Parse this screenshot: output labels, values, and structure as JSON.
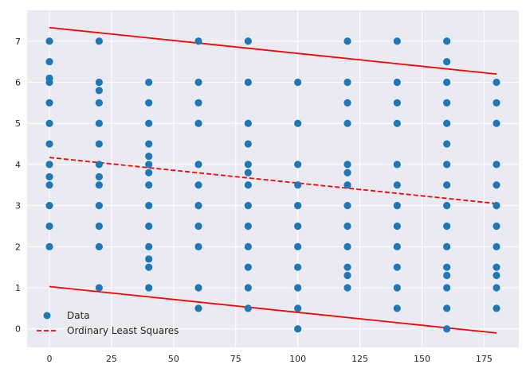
{
  "chart_data": {
    "type": "scatter",
    "title": "",
    "xlabel": "",
    "ylabel": "",
    "xlim": [
      -9,
      189
    ],
    "ylim": [
      -0.45,
      7.75
    ],
    "xticks": [
      0,
      25,
      50,
      75,
      100,
      125,
      150,
      175
    ],
    "yticks": [
      0,
      1,
      2,
      3,
      4,
      5,
      6,
      7
    ],
    "grid": true,
    "legend_position": "lower-left",
    "colors": {
      "background": "#eaeaf2",
      "grid": "#ffffff",
      "points": "#1f77b4",
      "fit": "#ff0000"
    },
    "series": [
      {
        "name": "Data",
        "kind": "scatter",
        "points": [
          [
            0,
            7
          ],
          [
            0,
            6.5
          ],
          [
            0,
            6.1
          ],
          [
            0,
            6
          ],
          [
            0,
            5.5
          ],
          [
            0,
            5
          ],
          [
            0,
            4.5
          ],
          [
            0,
            4
          ],
          [
            0,
            3.7
          ],
          [
            0,
            3.5
          ],
          [
            0,
            3
          ],
          [
            0,
            2.5
          ],
          [
            0,
            2
          ],
          [
            20,
            7
          ],
          [
            20,
            6
          ],
          [
            20,
            5.8
          ],
          [
            20,
            5.5
          ],
          [
            20,
            5
          ],
          [
            20,
            4.5
          ],
          [
            20,
            4
          ],
          [
            20,
            3.7
          ],
          [
            20,
            3.5
          ],
          [
            20,
            3
          ],
          [
            20,
            2.5
          ],
          [
            20,
            2
          ],
          [
            20,
            1
          ],
          [
            40,
            6
          ],
          [
            40,
            5.5
          ],
          [
            40,
            5
          ],
          [
            40,
            4.5
          ],
          [
            40,
            4.2
          ],
          [
            40,
            4
          ],
          [
            40,
            3.8
          ],
          [
            40,
            3.5
          ],
          [
            40,
            3
          ],
          [
            40,
            2.5
          ],
          [
            40,
            2
          ],
          [
            40,
            1.7
          ],
          [
            40,
            1.5
          ],
          [
            40,
            1
          ],
          [
            60,
            7
          ],
          [
            60,
            6
          ],
          [
            60,
            5.5
          ],
          [
            60,
            5
          ],
          [
            60,
            4
          ],
          [
            60,
            3.5
          ],
          [
            60,
            3
          ],
          [
            60,
            2.5
          ],
          [
            60,
            2
          ],
          [
            60,
            1
          ],
          [
            60,
            0.5
          ],
          [
            80,
            7
          ],
          [
            80,
            6
          ],
          [
            80,
            5
          ],
          [
            80,
            4.5
          ],
          [
            80,
            4
          ],
          [
            80,
            3.8
          ],
          [
            80,
            3.5
          ],
          [
            80,
            3
          ],
          [
            80,
            2.5
          ],
          [
            80,
            2
          ],
          [
            80,
            1.5
          ],
          [
            80,
            1
          ],
          [
            80,
            0.5
          ],
          [
            100,
            6
          ],
          [
            100,
            5
          ],
          [
            100,
            4
          ],
          [
            100,
            3.5
          ],
          [
            100,
            3
          ],
          [
            100,
            2.5
          ],
          [
            100,
            2
          ],
          [
            100,
            1.5
          ],
          [
            100,
            1
          ],
          [
            100,
            0.5
          ],
          [
            100,
            0
          ],
          [
            120,
            7
          ],
          [
            120,
            6
          ],
          [
            120,
            5.5
          ],
          [
            120,
            5
          ],
          [
            120,
            4
          ],
          [
            120,
            3.8
          ],
          [
            120,
            3.5
          ],
          [
            120,
            3
          ],
          [
            120,
            2.5
          ],
          [
            120,
            2
          ],
          [
            120,
            1.5
          ],
          [
            120,
            1.3
          ],
          [
            120,
            1
          ],
          [
            140,
            7
          ],
          [
            140,
            6
          ],
          [
            140,
            5.5
          ],
          [
            140,
            5
          ],
          [
            140,
            4
          ],
          [
            140,
            3.5
          ],
          [
            140,
            3
          ],
          [
            140,
            2.5
          ],
          [
            140,
            2
          ],
          [
            140,
            1.5
          ],
          [
            140,
            1
          ],
          [
            140,
            0.5
          ],
          [
            160,
            7
          ],
          [
            160,
            6.5
          ],
          [
            160,
            6
          ],
          [
            160,
            5.5
          ],
          [
            160,
            5
          ],
          [
            160,
            4.5
          ],
          [
            160,
            4
          ],
          [
            160,
            3.5
          ],
          [
            160,
            3
          ],
          [
            160,
            2.5
          ],
          [
            160,
            2
          ],
          [
            160,
            1.5
          ],
          [
            160,
            1.3
          ],
          [
            160,
            1
          ],
          [
            160,
            0.5
          ],
          [
            160,
            0
          ],
          [
            180,
            6
          ],
          [
            180,
            5.5
          ],
          [
            180,
            5
          ],
          [
            180,
            4
          ],
          [
            180,
            3.5
          ],
          [
            180,
            3
          ],
          [
            180,
            2.5
          ],
          [
            180,
            2
          ],
          [
            180,
            1.5
          ],
          [
            180,
            1.3
          ],
          [
            180,
            1
          ],
          [
            180,
            0.5
          ]
        ]
      },
      {
        "name": "Ordinary Least Squares",
        "kind": "line",
        "dash": "dashed",
        "x": [
          0,
          180
        ],
        "y": [
          4.17,
          3.05
        ]
      },
      {
        "name": "",
        "kind": "line",
        "dash": "solid",
        "x": [
          0,
          180
        ],
        "y": [
          7.33,
          6.2
        ]
      },
      {
        "name": "",
        "kind": "line",
        "dash": "solid",
        "x": [
          0,
          180
        ],
        "y": [
          1.03,
          -0.1
        ]
      }
    ],
    "legend": [
      {
        "label": "Data",
        "marker": "circle"
      },
      {
        "label": "Ordinary Least Squares",
        "marker": "dashed-line"
      }
    ]
  }
}
